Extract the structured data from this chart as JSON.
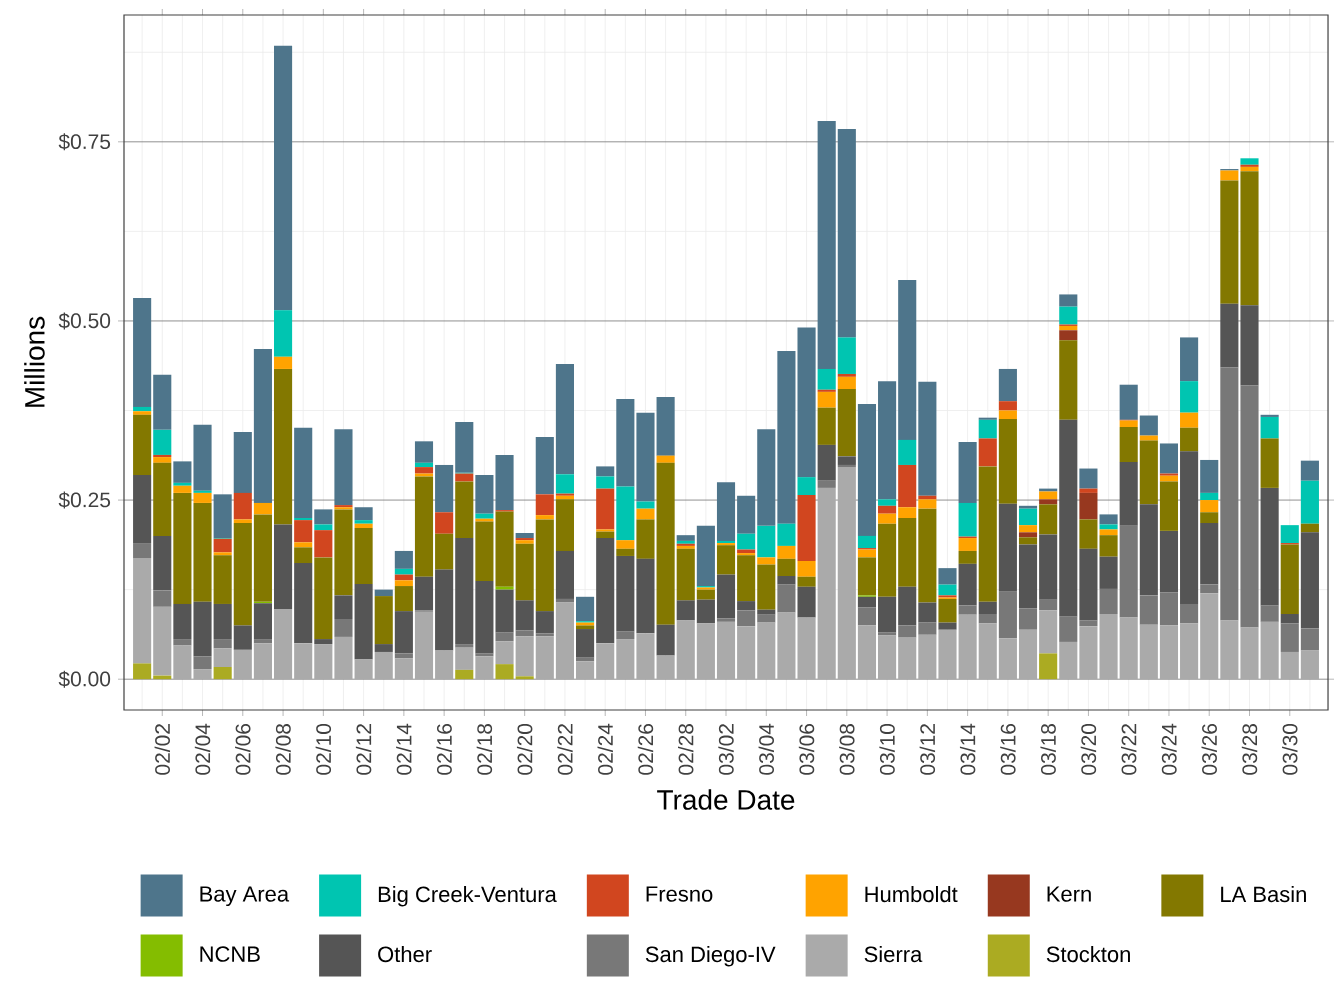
{
  "chart_data": {
    "type": "bar",
    "stacked": true,
    "xlabel": "Trade Date",
    "ylabel": "Millions",
    "categories": [
      null,
      "02/02",
      null,
      "02/04",
      null,
      "02/06",
      null,
      "02/08",
      null,
      "02/10",
      null,
      "02/12",
      null,
      "02/14",
      null,
      "02/16",
      null,
      "02/18",
      null,
      "02/20",
      null,
      "02/22",
      null,
      "02/24",
      null,
      "02/26",
      null,
      "02/28",
      null,
      "03/02",
      null,
      "03/04",
      null,
      "03/06",
      null,
      "03/08",
      null,
      "03/10",
      null,
      "03/12",
      null,
      "03/14",
      null,
      "03/16",
      null,
      "03/18",
      null,
      "03/20",
      null,
      "03/22",
      null,
      "03/24",
      null,
      "03/26",
      null,
      "03/28",
      null,
      "03/30",
      null
    ],
    "ylim": [
      -0.043,
      0.927
    ],
    "yticks": [
      {
        "value": 0,
        "label": "$0.00"
      },
      {
        "value": 0.25,
        "label": "$0.25"
      },
      {
        "value": 0.5,
        "label": "$0.50"
      },
      {
        "value": 0.75,
        "label": "$0.75"
      }
    ],
    "grid": true,
    "legend": "bottom",
    "series": [
      {
        "name": "Stockton",
        "color": "#abab22",
        "values": [
          0.022,
          0.005,
          0,
          0,
          0.017,
          0,
          0,
          0,
          0,
          0,
          0,
          0,
          0,
          0,
          0,
          0,
          0.013,
          0,
          0.021,
          0.004,
          0,
          0,
          0,
          0,
          0,
          0,
          0,
          0,
          0,
          0,
          0,
          0,
          0,
          0,
          0,
          0,
          0,
          0,
          0,
          0,
          0,
          0,
          0,
          0,
          0,
          0.036,
          0,
          0,
          0,
          0,
          0,
          0,
          0,
          0,
          0,
          0,
          0,
          0,
          0
        ]
      },
      {
        "name": "Sierra",
        "color": "#aaaaaa",
        "values": [
          0.147,
          0.096,
          0.047,
          0.014,
          0.026,
          0.041,
          0.05,
          0.098,
          0.05,
          0.049,
          0.059,
          0.028,
          0.038,
          0.029,
          0.094,
          0.04,
          0.031,
          0.032,
          0.032,
          0.056,
          0.06,
          0.107,
          0.025,
          0.05,
          0.056,
          0.064,
          0.033,
          0.082,
          0.078,
          0.08,
          0.074,
          0.079,
          0.093,
          0.086,
          0.267,
          0.296,
          0.075,
          0.061,
          0.058,
          0.062,
          0.069,
          0.09,
          0.078,
          0.057,
          0.069,
          0.06,
          0.052,
          0.074,
          0.091,
          0.086,
          0.076,
          0.075,
          0.078,
          0.12,
          0.082,
          0.072,
          0.08,
          0.038,
          0.04
        ]
      },
      {
        "name": "San Diego-IV",
        "color": "#787878",
        "values": [
          0.021,
          0.023,
          0.009,
          0.018,
          0.013,
          0,
          0.006,
          0,
          0,
          0,
          0.025,
          0,
          0,
          0.007,
          0.002,
          0,
          0.005,
          0.004,
          0.012,
          0.008,
          0.004,
          0.005,
          0.005,
          0,
          0.011,
          0,
          0,
          0,
          0,
          0.005,
          0.022,
          0.011,
          0.039,
          0,
          0.01,
          0.003,
          0.025,
          0.004,
          0.017,
          0.017,
          0,
          0.013,
          0.013,
          0.066,
          0.03,
          0.015,
          0.036,
          0.008,
          0.035,
          0.128,
          0.041,
          0.046,
          0.027,
          0.012,
          0.353,
          0.338,
          0.023,
          0.04,
          0.031
        ]
      },
      {
        "name": "Other",
        "color": "#555555",
        "values": [
          0.095,
          0.076,
          0.049,
          0.076,
          0.049,
          0.034,
          0.05,
          0.118,
          0.112,
          0.007,
          0.033,
          0.105,
          0.011,
          0.059,
          0.047,
          0.113,
          0.148,
          0.101,
          0.06,
          0.042,
          0.031,
          0.067,
          0.04,
          0.147,
          0.105,
          0.104,
          0.043,
          0.028,
          0.033,
          0.061,
          0.013,
          0.007,
          0.012,
          0.043,
          0.05,
          0.012,
          0.015,
          0.05,
          0.054,
          0.028,
          0.01,
          0.058,
          0.017,
          0.122,
          0.089,
          0.091,
          0.274,
          0.1,
          0.045,
          0.089,
          0.127,
          0.086,
          0.213,
          0.086,
          0.089,
          0.112,
          0.164,
          0.013,
          0.134
        ]
      },
      {
        "name": "NCNB",
        "color": "#84bd00",
        "values": [
          0,
          0,
          0,
          0,
          0,
          0,
          0.002,
          0,
          0,
          0,
          0,
          0,
          0,
          0,
          0,
          0,
          0,
          0,
          0.004,
          0,
          0,
          0,
          0,
          0,
          0,
          0,
          0,
          0,
          0,
          0,
          0,
          0,
          0,
          0,
          0,
          0,
          0.002,
          0,
          0,
          0,
          0,
          0,
          0,
          0,
          0,
          0,
          0,
          0,
          0,
          0,
          0,
          0,
          0,
          0,
          0,
          0,
          0,
          0,
          0
        ]
      },
      {
        "name": "LA Basin",
        "color": "#837800",
        "values": [
          0.084,
          0.102,
          0.155,
          0.138,
          0.068,
          0.143,
          0.122,
          0.217,
          0.022,
          0.114,
          0.12,
          0.078,
          0.067,
          0.035,
          0.14,
          0.05,
          0.079,
          0.083,
          0.105,
          0.079,
          0.128,
          0.072,
          0.005,
          0.009,
          0.01,
          0.055,
          0.226,
          0.072,
          0.014,
          0.041,
          0.064,
          0.063,
          0.024,
          0.014,
          0.052,
          0.094,
          0.053,
          0.102,
          0.096,
          0.131,
          0.033,
          0.018,
          0.189,
          0.118,
          0.01,
          0.042,
          0.111,
          0.041,
          0.03,
          0.049,
          0.089,
          0.069,
          0.033,
          0.015,
          0.172,
          0.187,
          0.069,
          0.097,
          0.012
        ]
      },
      {
        "name": "Kern",
        "color": "#97381f",
        "values": [
          0,
          0,
          0,
          0,
          0,
          0,
          0,
          0,
          0,
          0,
          0,
          0,
          0,
          0,
          0,
          0,
          0,
          0,
          0,
          0,
          0,
          0,
          0,
          0,
          0,
          0,
          0,
          0,
          0,
          0,
          0,
          0,
          0,
          0,
          0,
          0,
          0,
          0,
          0,
          0,
          0,
          0,
          0,
          0,
          0.007,
          0.007,
          0.014,
          0.037,
          0,
          0,
          0,
          0,
          0,
          0,
          0,
          0,
          0,
          0,
          0
        ]
      },
      {
        "name": "Humboldt",
        "color": "#ffa300",
        "values": [
          0.005,
          0.008,
          0.01,
          0.014,
          0.004,
          0.005,
          0.016,
          0.017,
          0.007,
          0,
          0.003,
          0.006,
          0,
          0.008,
          0.004,
          0,
          0,
          0.004,
          0,
          0.005,
          0.006,
          0.005,
          0.004,
          0.003,
          0.012,
          0.015,
          0.01,
          0.004,
          0.003,
          0.003,
          0.003,
          0.01,
          0.018,
          0.022,
          0.022,
          0.017,
          0.011,
          0.014,
          0.015,
          0.013,
          0.002,
          0.018,
          0,
          0.012,
          0.01,
          0.011,
          0.006,
          0,
          0.008,
          0.009,
          0.007,
          0.008,
          0.021,
          0.017,
          0.014,
          0.006,
          0,
          null,
          0
        ]
      },
      {
        "name": "Fresno",
        "color": "#d1461f",
        "values": [
          0,
          0.003,
          0,
          0,
          0.019,
          0.037,
          0,
          0,
          0.031,
          0.038,
          0.003,
          0,
          0,
          0.008,
          0.009,
          0.03,
          0.011,
          0,
          0.002,
          0.003,
          0.029,
          0.003,
          0,
          0.057,
          0,
          0,
          0,
          0.003,
          0,
          0,
          0.005,
          0,
          0,
          0.092,
          0.003,
          0.004,
          0.002,
          0.011,
          0.059,
          0.005,
          0.003,
          0.002,
          0.039,
          0.013,
          0,
          0,
          0.002,
          0.006,
          null,
          0.001,
          0,
          0.003,
          0,
          0,
          0,
          0.003,
          null,
          0.002,
          0
        ]
      },
      {
        "name": "Big Creek-Ventura",
        "color": "#00c5b1",
        "values": [
          0.006,
          0.035,
          0.004,
          0.003,
          0.001,
          0,
          0,
          0.065,
          0.003,
          0.008,
          0,
          0.005,
          0,
          0.008,
          0.006,
          0,
          0.001,
          0.007,
          0,
          0,
          0,
          0.027,
          0.002,
          0.017,
          0.075,
          0.01,
          0,
          0.004,
          0.002,
          0.003,
          0.022,
          0.044,
          0.031,
          0.025,
          0.029,
          0.051,
          0.017,
          0.009,
          0.035,
          0,
          0.015,
          0.047,
          0.026,
          0,
          0.023,
          0,
          0.025,
          0,
          0.007,
          0,
          0,
          0,
          0.044,
          0.01,
          0,
          0.009,
          0.03,
          0.025,
          0.06
        ]
      },
      {
        "name": "Bay Area",
        "color": "#4e758b",
        "values": [
          0.152,
          0.077,
          0.03,
          0.092,
          0.061,
          0.085,
          0.215,
          0.369,
          0.126,
          0.021,
          0.106,
          0.018,
          0.009,
          0.025,
          0.03,
          0.066,
          0.071,
          0.054,
          0.077,
          0.007,
          0.08,
          0.154,
          0.034,
          0.014,
          0.122,
          0.124,
          0.082,
          0.008,
          0.084,
          0.082,
          0.053,
          0.135,
          0.241,
          0.209,
          0.346,
          0.291,
          0.184,
          0.165,
          0.223,
          0.159,
          0.023,
          0.085,
          0.003,
          0.045,
          0.004,
          0.004,
          0.017,
          0.028,
          0.014,
          0.049,
          0.028,
          0.042,
          0.061,
          0.046,
          0.002,
          0,
          0.003,
          0,
          0.028
        ]
      }
    ]
  }
}
